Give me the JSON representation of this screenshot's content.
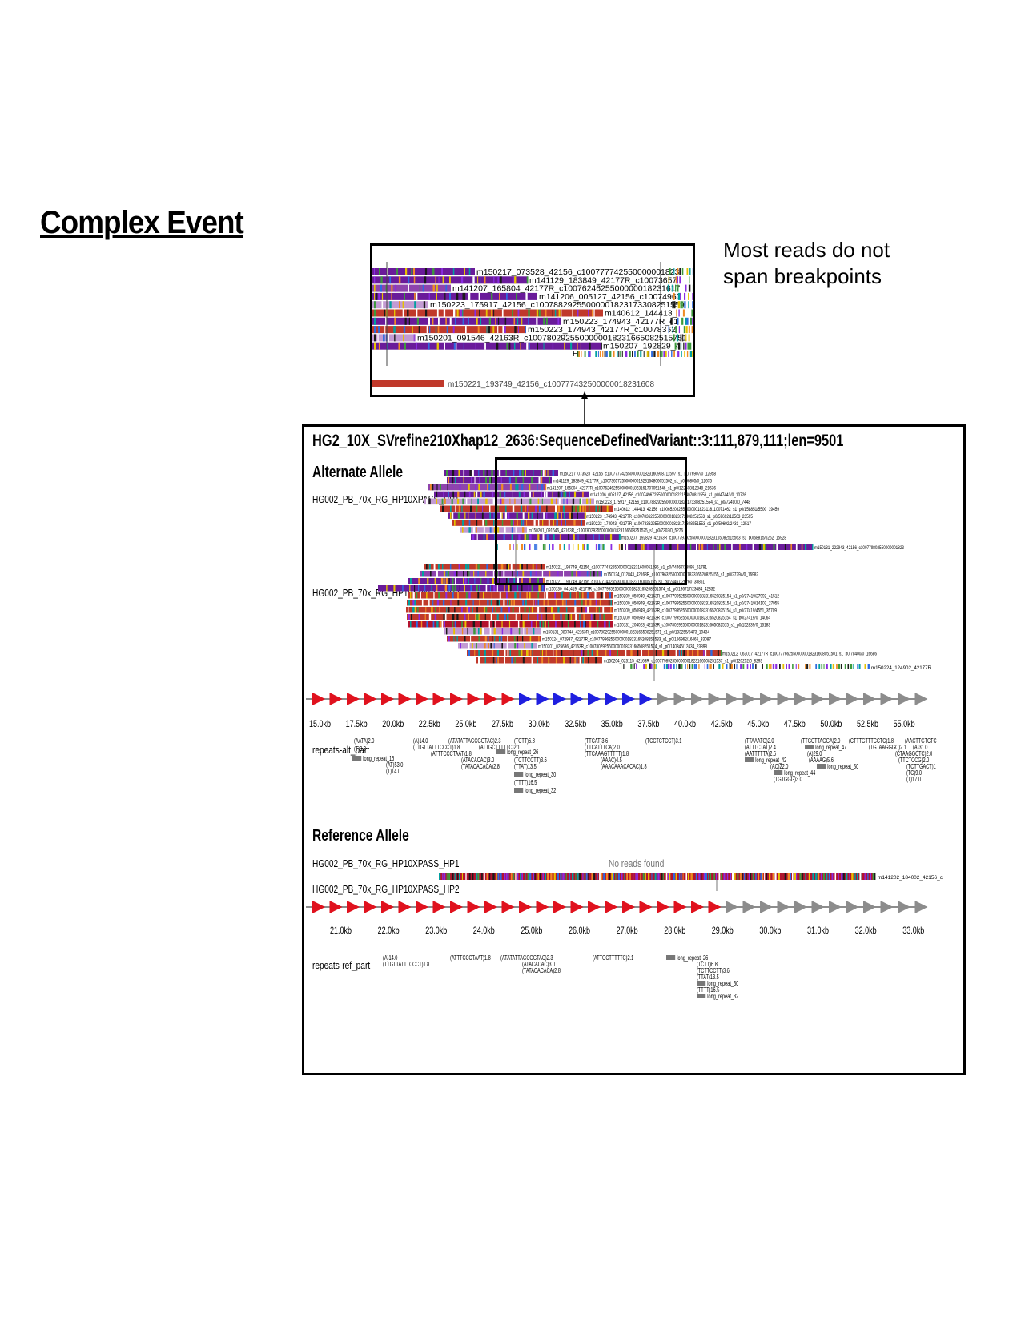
{
  "page": {
    "title": "Complex Event",
    "callout": "Most reads do not span breakpoints"
  },
  "zoom": {
    "reads": [
      "m150217_073528_42156_c100777742550000001823",
      "m141129_183849_42177R_c10073657",
      "m141207_165804_42177R_c1007624625500000018231617",
      "m141206_005127_42156_c10074967",
      "m150223_175917_42156_c10078829255000001823173308251559",
      "m140612_144413_",
      "m150223_174943_42177R_c1",
      "m150223_174943_42177R_c10078362",
      "m150201_091546_42163R_c1007802925500000018231665082515751",
      "m150207_192829_4"
    ],
    "overflow_read": "m150221_193749_42156_c100777432500000018231608"
  },
  "main": {
    "title": "HG2_10X_SVrefine210Xhap12_2636:SequenceDefinedVariant::3:111,879,111;len=9501",
    "alt": {
      "heading": "Alternate Allele",
      "hp1": {
        "label": "HG002_PB_70x_RG_HP10XPASS_HP1",
        "reads": [
          "m150217_073528_42156_c100777742550000001823160908711597_s1_p0/76907/0_12958",
          "m141129_183849_42177R_c100736572550000001823164806051502_s1_p0/96805/0_12675",
          "m141207_165804_42177R_c100762462550000001823161707051546_s1_p0/122608/12848_21636",
          "m141206_005127_42156_c100749672550000001823154070811556_s1_p0/47443/0_10726",
          "m150223_175917_42156_c100788292550000001823173308251554_s1_p0/72490/0_7448",
          "m140612_144413_42156_c100652082550000001823118110071462_s1_p0/158851/5500_19459",
          "m150223_174943_42177R_c100783622550000001823173308251553_s1_p0/59692/12563_23595",
          "m150223_174943_42177R_c100783622550000001823173308251553_s1_p0/59692/2431_12517",
          "m150201_091546_42163R_c100780292550000001823166508251575_s1_p0/7303/0_5276",
          "m150207_192829_42163R_c100779792550000001823165082515563_s1_p0/68815/5252_15928"
        ],
        "tail_read": "m150131_222943_42156_c100779802550000001823"
      },
      "hp2": {
        "label": "HG002_PB_70x_RG_HP10XPASS_HP2",
        "reads": [
          "m150221_193749_42156_c1007774325500000018231608051595_s1_p0/74467/38895_51791",
          "m150124_012843_42163R_c1007963255000000182316520825155_s1_p0/27294/0_16982",
          "m150221_193749_42156_c100777432550000001823160805195_s1_p0/74467/26760_38851",
          "m150130_041419_42177R_c100779852550000001823165208251574_s1_p0/136717/23484_42332",
          "m150209_050949_42163R_c10077995255000000182316520825154_s1_p0/27419/27992_41512",
          "m150209_050949_42163R_c10077995255000000182316520825154_s1_p0/27419/14103_27955",
          "m150209_050949_42163R_c10077995255000000182316520825154_s1_p0/27419/4551_35709",
          "m150209_050949_42163R_c10077995255000000182316520825154_s1_p0/27419/0_14064",
          "m150131_204023_42163R_c1007802925500000018231665082515_s1_p0/152839/0_13183",
          "m150131_080744_42163R_c100780292550000001823166508251571_s1_p0/133255/8473_19434",
          "m150124_072937_42177R_c100779962550000001823165208251533_s1_p0/156962/16465_33087",
          "m150201_025636_42163R_c100780292550000001823166508251574_s1_p0/140345/12434_23898",
          "m150212_063017_42177R_c1007776625500000018231608051501_s1_p0/78400/0_16686",
          "m150204_023115_42163R_c100779892550000001823166508251537_s1_p0/120252/0_8293"
        ],
        "tail_read": "m150224_124902_42177R"
      },
      "ruler": [
        "15.0kb",
        "17.5kb",
        "20.0kb",
        "22.5kb",
        "25.0kb",
        "27.5kb",
        "30.0kb",
        "32.5kb",
        "35.0kb",
        "37.5kb",
        "40.0kb",
        "42.5kb",
        "45.0kb",
        "47.5kb",
        "50.0kb",
        "52.5kb",
        "55.0kb"
      ],
      "repeats_label": "repeats-alt_part",
      "repeats": [
        "(AATA)2.0",
        "(T)3.3",
        "long_repeat_16",
        "(AT)53.0",
        "(T)14.0",
        "(A)14.0",
        "(TTGTTATTTCCCT)1.8",
        "(ATATATTAGCGGTAC)2.3",
        "(ATTTCCCTAAT)1.8",
        "(ATTGCTTTTTC)2.1",
        "(ATACACAC)3.0",
        "(TATACACACA)2.8",
        "(TCTT)6.8",
        "long_repeat_26",
        "(TCTTCCTT)3.6",
        "(TTAT)13.5",
        "long_repeat_30",
        "(TTTT)16.5",
        "long_repeat_32",
        "(TTCAT)3.6",
        "(TTCATTTCA)2.0",
        "(TTCAAAGTTTTT)1.8",
        "(AAAC)4.5",
        "(AAACAAACACAC)1.8",
        "(TCCTCTCCT)3.1",
        "(TTAAATG)2.0",
        "(ATTTCTAT)2.4",
        "(AATTTTTA)2.6",
        "long_repeat_42",
        "(AC)22.0",
        "long_repeat_44",
        "(TGTGGG)3.0",
        "(TTGCTTAGGA)2.0",
        "long_repeat_47",
        "(A)29.0",
        "(AAAAG)5.6",
        "long_repeat_50",
        "(CTTTGTTTCCTC)1.8",
        "(TGTAAGGGC)2.1",
        "(AACTTGTCTC",
        "(A)31.0",
        "(CTAAGGCTC)2.0",
        "(TTCTCCG)2.0",
        "(TCTTGACT)1",
        "(TC)9.0",
        "(T)17.0"
      ]
    },
    "ref": {
      "heading": "Reference Allele",
      "hp1": {
        "label": "HG002_PB_70x_RG_HP10XPASS_HP1",
        "empty_msg": "No reads found"
      },
      "hp2": {
        "label": "HG002_PB_70x_RG_HP10XPASS_HP2",
        "tail_read": "m141202_184002_42156_c"
      },
      "ruler": [
        "21.0kb",
        "22.0kb",
        "23.0kb",
        "24.0kb",
        "25.0kb",
        "26.0kb",
        "27.0kb",
        "28.0kb",
        "29.0kb",
        "30.0kb",
        "31.0kb",
        "32.0kb",
        "33.0kb"
      ],
      "repeats_label": "repeats-ref_part",
      "repeats": [
        "(A)14.0",
        "(TTGTTATTTCCCT)1.8",
        "(ATTTCCCTAAT)1.8",
        "(ATATATTAGCGGTAC)2.3",
        "(ATACACAC)3.0",
        "(TATACACACA)2.8",
        "(ATTGCTTTTTC)2.1",
        "long_repeat_26",
        "(TCTT)6.8",
        "(TCTTCCTT)3.6",
        "(TTAT)13.5",
        "long_repeat_30",
        "(TTTT)16.5",
        "long_repeat_32"
      ]
    },
    "colors": {
      "purple": "#6a1b9a",
      "violet": "#8e44ad",
      "lilac": "#c39bd3",
      "red": "#c0392b",
      "crimson": "#b3122e",
      "blue": "#1f1fe0",
      "grey": "#8c8c8c"
    }
  }
}
